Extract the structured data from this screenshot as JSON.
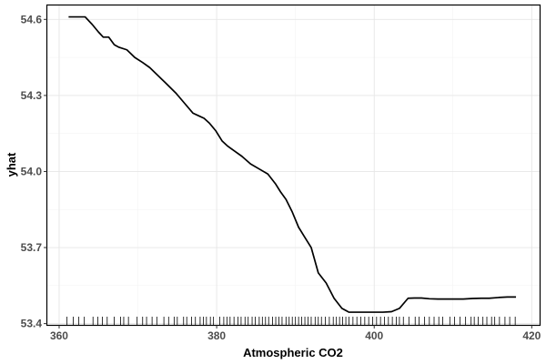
{
  "chart_data": {
    "type": "line",
    "xlabel": "Atmospheric CO2",
    "ylabel": "yhat",
    "xlim": [
      358.5,
      421
    ],
    "ylim": [
      53.395,
      54.655
    ],
    "x_ticks": [
      360,
      380,
      400,
      420
    ],
    "x_tick_labels": [
      "360",
      "380",
      "400",
      "420"
    ],
    "y_ticks": [
      53.4,
      53.7,
      54.0,
      54.3,
      54.6
    ],
    "y_tick_labels": [
      "53.4",
      "53.7",
      "54.0",
      "54.3",
      "54.6"
    ],
    "grid": true,
    "legend": "none",
    "colors": {
      "line": "#000000",
      "rug": "#000000",
      "grid": "#e6e6e6",
      "background": "#ffffff"
    },
    "series": [
      {
        "x": [
          361.2,
          362.5,
          363.3,
          364.2,
          365.0,
          365.6,
          366.3,
          367.0,
          367.6,
          368.6,
          369.6,
          370.6,
          371.5,
          372.5,
          373.5,
          374.8,
          375.9,
          377.0,
          377.7,
          378.4,
          379.1,
          379.9,
          380.7,
          381.4,
          382.3,
          383.2,
          384.3,
          385.4,
          386.5,
          387.5,
          388.1,
          388.8,
          389.6,
          390.4,
          391.2,
          392.0,
          392.9,
          393.9,
          394.9,
          395.9,
          396.8,
          397.8,
          399.0,
          400.1,
          401.1,
          402.2,
          403.2,
          404.3,
          405.1,
          406.0,
          407.0,
          408.1,
          409.2,
          410.2,
          411.3,
          412.5,
          413.6,
          414.6,
          415.8,
          416.9,
          418.0
        ],
        "y": [
          54.61,
          54.61,
          54.61,
          54.58,
          54.55,
          54.53,
          54.53,
          54.5,
          54.49,
          54.48,
          54.45,
          54.43,
          54.41,
          54.38,
          54.35,
          54.31,
          54.27,
          54.23,
          54.22,
          54.21,
          54.19,
          54.16,
          54.12,
          54.1,
          54.08,
          54.06,
          54.03,
          54.01,
          53.99,
          53.95,
          53.92,
          53.89,
          53.84,
          53.78,
          53.74,
          53.7,
          53.6,
          53.56,
          53.5,
          53.46,
          53.445,
          53.445,
          53.445,
          53.445,
          53.445,
          53.447,
          53.46,
          53.5,
          53.501,
          53.501,
          53.498,
          53.497,
          53.497,
          53.497,
          53.497,
          53.499,
          53.5,
          53.5,
          53.503,
          53.505,
          53.505
        ]
      }
    ],
    "rug_x": [
      361.0,
      361.8,
      362.5,
      363.2,
      364.3,
      364.9,
      365.5,
      366.1,
      367.0,
      367.8,
      368.2,
      368.8,
      369.9,
      370.6,
      371.1,
      371.8,
      372.4,
      373.3,
      373.9,
      374.6,
      375.0,
      375.8,
      376.2,
      376.8,
      377.3,
      377.9,
      378.3,
      378.7,
      379.2,
      379.6,
      380.4,
      380.9,
      381.3,
      381.7,
      382.2,
      382.7,
      383.1,
      383.6,
      384.0,
      384.5,
      384.9,
      385.4,
      385.8,
      386.2,
      386.6,
      387.1,
      387.5,
      387.9,
      388.3,
      388.8,
      389.2,
      389.6,
      390.0,
      390.4,
      390.8,
      391.2,
      391.6,
      392.0,
      392.5,
      392.9,
      393.3,
      393.8,
      394.3,
      394.8,
      395.2,
      395.6,
      396.0,
      396.4,
      396.8,
      397.3,
      397.8,
      398.3,
      398.8,
      399.3,
      399.8,
      400.3,
      400.8,
      401.3,
      401.8,
      402.3,
      402.8,
      403.2,
      403.7,
      404.4,
      405.2,
      405.7,
      406.4,
      407.0,
      407.6,
      408.2,
      408.7,
      409.6,
      410.2,
      410.9,
      411.6,
      412.3,
      412.7,
      413.2,
      413.8,
      414.3,
      414.9,
      415.3,
      415.9,
      416.6,
      417.2,
      417.9
    ]
  }
}
